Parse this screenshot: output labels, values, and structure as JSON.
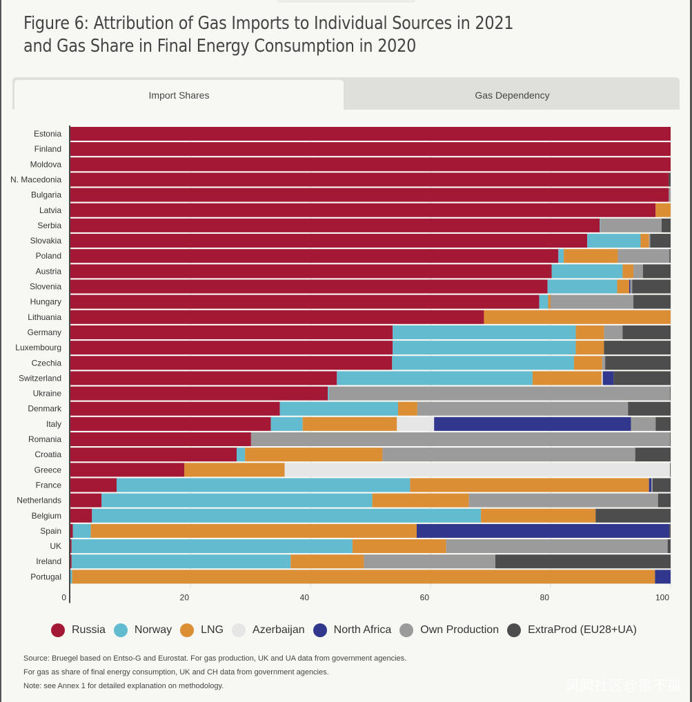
{
  "title_line1": "Figure 6: Attribution of Gas Imports to Individual Sources in 2021",
  "title_line2": "and Gas Share in Final Energy Consumption in 2020",
  "tabs": [
    {
      "label": "Import Shares",
      "active": true
    },
    {
      "label": "Gas Dependency",
      "active": false
    }
  ],
  "notes": [
    "Source: Bruegel based on Entso-G and Eurostat. For gas production, UK and UA data from government agencies.",
    "For gas as share of final energy consumption, UK and CH data from government agencies.",
    "Note: see Annex 1 for detailed explanation on methodology."
  ],
  "watermark": "风闻社区@德不孤",
  "chart_data": {
    "type": "bar",
    "orientation": "horizontal",
    "stacked": true,
    "title": "Import Shares",
    "xlabel": "",
    "ylabel": "",
    "xlim": [
      0,
      100
    ],
    "xticks": [
      0,
      20,
      40,
      60,
      80,
      100
    ],
    "grid": true,
    "legend_position": "bottom",
    "categories": [
      "Estonia",
      "Finland",
      "Moldova",
      "N. Macedonia",
      "Bulgaria",
      "Latvia",
      "Serbia",
      "Slovakia",
      "Poland",
      "Austria",
      "Slovenia",
      "Hungary",
      "Lithuania",
      "Germany",
      "Luxembourg",
      "Czechia",
      "Switzerland",
      "Ukraine",
      "Denmark",
      "Italy",
      "Romania",
      "Croatia",
      "Greece",
      "France",
      "Netherlands",
      "Belgium",
      "Spain",
      "UK",
      "Ireland",
      "Portugal"
    ],
    "series": [
      {
        "name": "Russia",
        "color": "#a31834",
        "values": [
          100,
          100,
          100,
          99.7,
          99.7,
          97.5,
          88.2,
          86.1,
          81.3,
          80.2,
          79.5,
          78.1,
          68.9,
          53.7,
          53.7,
          53.6,
          44.4,
          42.9,
          34.9,
          33.4,
          30.1,
          27.7,
          19.0,
          7.7,
          5.2,
          3.6,
          0.4,
          0.2,
          0.2,
          0
        ]
      },
      {
        "name": "Norway",
        "color": "#62bbcf",
        "values": [
          0,
          0,
          0,
          0,
          0,
          0,
          0.1,
          8.9,
          0.9,
          11.8,
          11.6,
          1.5,
          0,
          30.5,
          30.5,
          30.3,
          32.6,
          0.2,
          19.7,
          5.3,
          0,
          1.4,
          0,
          48.9,
          45.1,
          64.8,
          3.0,
          46.8,
          36.5,
          0.3
        ]
      },
      {
        "name": "LNG",
        "color": "#db8e34",
        "values": [
          0,
          0,
          0,
          0,
          0,
          2.5,
          0,
          1.4,
          9.0,
          1.8,
          2.0,
          0.4,
          31.1,
          4.7,
          4.7,
          4.7,
          11.5,
          0,
          3.2,
          15.7,
          0,
          22.9,
          16.7,
          39.8,
          16.1,
          19.1,
          54.3,
          15.6,
          12.2,
          97.1
        ]
      },
      {
        "name": "Azerbaijan",
        "color": "#e6e6e6",
        "values": [
          0,
          0,
          0,
          0,
          0,
          0,
          0,
          0,
          0,
          0,
          0,
          0,
          0,
          0,
          0,
          0,
          0.2,
          0,
          0,
          6.2,
          0,
          0,
          64.2,
          0,
          0,
          0,
          0,
          0,
          0,
          0
        ]
      },
      {
        "name": "North Africa",
        "color": "#31378c",
        "values": [
          0,
          0,
          0,
          0,
          0,
          0,
          0,
          0,
          0,
          0,
          0.2,
          0,
          0,
          0,
          0,
          0,
          1.8,
          0,
          0,
          32.8,
          0,
          0,
          0,
          0.4,
          0,
          0,
          42.1,
          0,
          0,
          2.6
        ]
      },
      {
        "name": "Own Production",
        "color": "#9b9b9b",
        "values": [
          0,
          0,
          0,
          0,
          0.3,
          0,
          10.2,
          0.2,
          8.6,
          1.6,
          0.3,
          13.8,
          0,
          3.1,
          0,
          0.5,
          0,
          56.8,
          35.1,
          4.1,
          69.8,
          42.1,
          0,
          0.2,
          31.5,
          0,
          0,
          36.9,
          21.9,
          0
        ]
      },
      {
        "name": "ExtraProd (EU28+UA)",
        "color": "#4d4d4d",
        "values": [
          0,
          0,
          0,
          0.3,
          0,
          0,
          1.5,
          3.4,
          0.2,
          4.6,
          6.4,
          6.2,
          0,
          8.0,
          11.1,
          10.9,
          9.5,
          0.1,
          7.1,
          2.5,
          0.1,
          5.9,
          0.1,
          3.0,
          2.1,
          12.5,
          0.2,
          0.5,
          29.2,
          0
        ]
      }
    ]
  }
}
